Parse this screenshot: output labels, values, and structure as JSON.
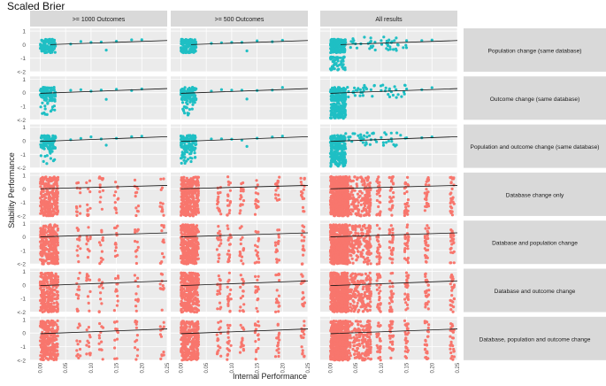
{
  "chart_data": {
    "type": "scatter",
    "title": "Scaled Brier",
    "xlabel": "Internal Performance",
    "ylabel": "Stability Performance",
    "xlim": [
      -0.02,
      0.25
    ],
    "ylim": [
      -2,
      1.2
    ],
    "x_ticks": [
      "0.00",
      "0.05",
      "0.10",
      "0.15",
      "0.20",
      "0.25"
    ],
    "x_tick_values": [
      0.0,
      0.05,
      0.1,
      0.15,
      0.2,
      0.25
    ],
    "y_ticks": [
      "1",
      "0",
      "-1",
      "<-2"
    ],
    "y_tick_values": [
      1,
      0,
      -1,
      -2
    ],
    "columns": [
      ">= 1000 Outcomes",
      ">= 500 Outcomes",
      "All results"
    ],
    "rows": [
      {
        "label": "Population change (same database)",
        "color": "#1fbfc4",
        "trend": [
          0.02,
          0.0,
          0.25,
          0.3
        ]
      },
      {
        "label": "Outcome change (same database)",
        "color": "#1fbfc4",
        "trend": [
          0.0,
          -0.05,
          0.25,
          0.3
        ]
      },
      {
        "label": "Population and outcome change (same database)",
        "color": "#1fbfc4",
        "trend": [
          0.0,
          -0.05,
          0.25,
          0.3
        ]
      },
      {
        "label": "Database change only",
        "color": "#f8766d",
        "trend": [
          0.0,
          0.0,
          0.25,
          0.25
        ]
      },
      {
        "label": "Database and population change",
        "color": "#f8766d",
        "trend": [
          0.0,
          0.0,
          0.25,
          0.3
        ]
      },
      {
        "label": "Database and outcome change",
        "color": "#f8766d",
        "trend": [
          0.0,
          -0.05,
          0.25,
          0.3
        ]
      },
      {
        "label": "Database, population and outcome change",
        "color": "#f8766d",
        "trend": [
          0.0,
          -0.05,
          0.25,
          0.3
        ]
      }
    ],
    "clusters": {
      "teal_dense": {
        "x_range": [
          0.0,
          0.03
        ],
        "y_range": [
          -0.6,
          0.5
        ]
      },
      "red_dense": {
        "x_range": [
          0.0,
          0.035
        ],
        "y_range": [
          -2,
          0.9
        ]
      },
      "red_stripe_x": [
        0.075,
        0.095,
        0.12,
        0.15,
        0.19,
        0.24
      ],
      "teal_sparse_points": [
        [
          0.06,
          0.1
        ],
        [
          0.08,
          0.15
        ],
        [
          0.1,
          0.2
        ],
        [
          0.12,
          0.1
        ],
        [
          0.15,
          0.2
        ],
        [
          0.18,
          0.25
        ],
        [
          0.2,
          0.3
        ],
        [
          0.13,
          -0.4
        ]
      ]
    },
    "grid": true,
    "legend": "none"
  }
}
